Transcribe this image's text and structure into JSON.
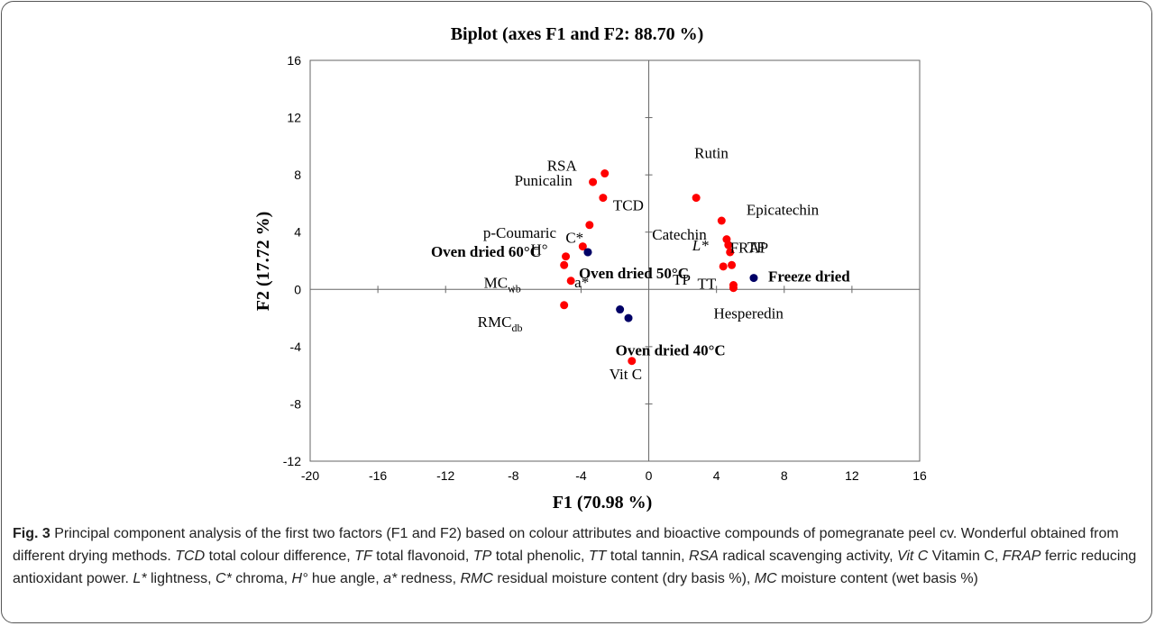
{
  "chart_data": {
    "type": "scatter",
    "title": "Biplot (axes F1 and F2: 88.70 %)",
    "xlabel": "F1 (70.98 %)",
    "ylabel": "F2 (17.72 %)",
    "xlim": [
      -20,
      16
    ],
    "ylim": [
      -12,
      16
    ],
    "xticks": [
      -20,
      -16,
      -12,
      -8,
      -4,
      0,
      4,
      8,
      12,
      16
    ],
    "yticks": [
      -12,
      -8,
      -4,
      0,
      4,
      8,
      12,
      16
    ],
    "grid": false,
    "variables": [
      {
        "label": "RSA",
        "x": -2.6,
        "y": 8.1
      },
      {
        "label": "Punicalin",
        "x": -3.3,
        "y": 7.5
      },
      {
        "label": "TCD",
        "x": -2.7,
        "y": 6.4
      },
      {
        "label": "p-Coumaric",
        "x": -3.5,
        "y": 4.5
      },
      {
        "label": "C*",
        "x": -3.9,
        "y": 3.0
      },
      {
        "label": "H°",
        "x": -4.9,
        "y": 2.3
      },
      {
        "label": "MC",
        "sub": "wb",
        "x": -5.0,
        "y": 1.7
      },
      {
        "label": "a*",
        "x": -4.6,
        "y": 0.6
      },
      {
        "label": "RMC",
        "sub": "db",
        "x": -5.0,
        "y": -1.1
      },
      {
        "label": "Vit C",
        "x": -1.0,
        "y": -5.0
      },
      {
        "label": "Rutin",
        "x": 2.8,
        "y": 6.4
      },
      {
        "label": "Catechin",
        "x": 4.3,
        "y": 4.8
      },
      {
        "label": "Epicatechin",
        "x": 4.6,
        "y": 3.5
      },
      {
        "label": "L*",
        "x": 4.7,
        "y": 3.1
      },
      {
        "label": "TF",
        "x": 4.8,
        "y": 2.6
      },
      {
        "label": "TP",
        "x": 4.4,
        "y": 1.6
      },
      {
        "label": "FRAP",
        "x": 4.9,
        "y": 1.7
      },
      {
        "label": "TT",
        "x": 5.0,
        "y": 0.3
      },
      {
        "label": "Hesperedin",
        "x": 5.0,
        "y": 0.1
      }
    ],
    "observations": [
      {
        "label": "Oven dried 60°C",
        "x": -3.6,
        "y": 2.6
      },
      {
        "label": "Oven dried 50°C",
        "x": -3.6,
        "y": 2.6
      },
      {
        "label": "Oven dried 40°C",
        "x": -1.7,
        "y": -1.4
      },
      {
        "label": "Oven dried 40°C (2)",
        "x": -1.2,
        "y": -2.0
      },
      {
        "label": "Freeze dried",
        "x": 6.2,
        "y": 0.8
      }
    ],
    "colors": {
      "variables": "#ff0000",
      "observations": "#000066",
      "axes": "#888888"
    }
  },
  "caption": {
    "fig_label": "Fig. 3",
    "text": " Principal component analysis of the first two factors (F1 and F2) based on colour attributes and bioactive compounds of pomegranate peel cv. Wonderful obtained from different drying methods. ",
    "abbreviations": [
      {
        "abbr": "TCD",
        "desc": " total colour difference, "
      },
      {
        "abbr": "TF",
        "desc": " total flavonoid, "
      },
      {
        "abbr": "TP",
        "desc": " total phenolic, "
      },
      {
        "abbr": "TT",
        "desc": " total tannin, "
      },
      {
        "abbr": "RSA",
        "desc": " radical scavenging activity, "
      },
      {
        "abbr": "Vit C",
        "desc": " Vitamin C, "
      },
      {
        "abbr": "FRAP",
        "desc": " ferric reducing antioxidant power. "
      },
      {
        "abbr": "L*",
        "desc": " lightness, "
      },
      {
        "abbr": "C*",
        "desc": " chroma, "
      },
      {
        "abbr": "H°",
        "desc": " hue angle, "
      },
      {
        "abbr": "a*",
        "desc": " redness, "
      },
      {
        "abbr": "RMC",
        "desc": " residual moisture content (dry basis %), "
      },
      {
        "abbr": "MC",
        "desc": " moisture content (wet basis %)"
      }
    ]
  }
}
